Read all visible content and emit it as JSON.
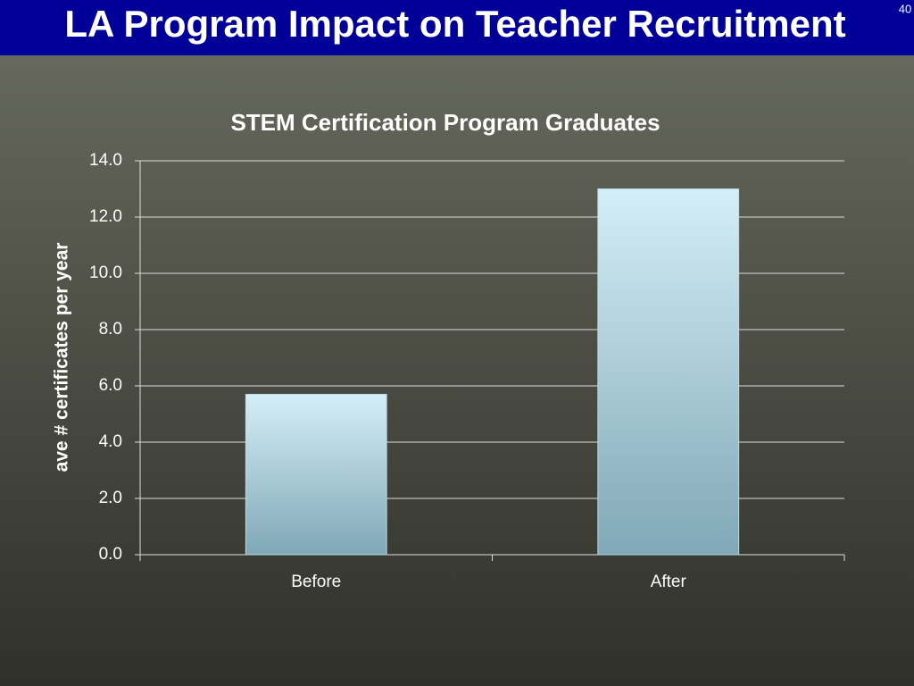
{
  "slide": {
    "title": "LA Program Impact on Teacher Recruitment",
    "number": 40
  },
  "chart_data": {
    "type": "bar",
    "title": "STEM Certification Program Graduates",
    "y_label": "ave # certificates per year",
    "categories": [
      "Before",
      "After"
    ],
    "values": [
      5.7,
      13.0
    ],
    "color": "#a9d3e3",
    "ylim": [
      0,
      14
    ],
    "yticks": [
      {
        "value": 0,
        "label": "0.0"
      },
      {
        "value": 2,
        "label": "2.0"
      },
      {
        "value": 4,
        "label": "4.0"
      },
      {
        "value": 6,
        "label": "6.0"
      },
      {
        "value": 8,
        "label": "8.0"
      },
      {
        "value": 10,
        "label": "10.0"
      },
      {
        "value": 12,
        "label": "12.0"
      },
      {
        "value": 14,
        "label": "14.0"
      }
    ],
    "grid": true
  }
}
